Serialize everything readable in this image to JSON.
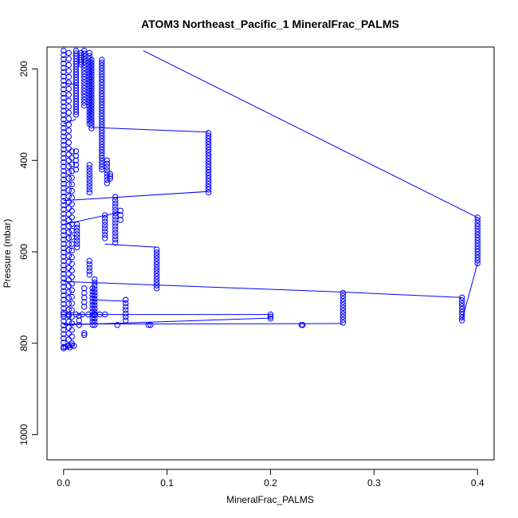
{
  "chart_data": {
    "type": "scatter",
    "title": "ATOM3 Northeast_Pacific_1 MineralFrac_PALMS",
    "xlabel": "MineralFrac_PALMS",
    "ylabel": "Pressure (mbar)",
    "xlim": [
      -0.016,
      0.416
    ],
    "ylim": [
      1055,
      152
    ],
    "y_reversed": true,
    "x_ticks": [
      0.0,
      0.1,
      0.2,
      0.3,
      0.4
    ],
    "x_tick_labels": [
      "0.0",
      "0.1",
      "0.2",
      "0.3",
      "0.4"
    ],
    "y_ticks": [
      200,
      400,
      600,
      800,
      1000
    ],
    "y_tick_labels": [
      "200",
      "400",
      "600",
      "800",
      "1000"
    ],
    "grid": false,
    "colors": {
      "series": "#0000ff",
      "axis": "#000000"
    },
    "series": [
      {
        "marker": "open-circle",
        "connected": true,
        "segments": [
          {
            "x": 0.0,
            "p_start": 160,
            "p_end": 808,
            "n": 70
          },
          {
            "x": 0.005,
            "p_start": 165,
            "p_end": 805,
            "n": 50
          },
          {
            "x": 0.008,
            "p_start": 380,
            "p_end": 800,
            "n": 30
          },
          {
            "x": 0.012,
            "p_start": 160,
            "p_end": 300,
            "n": 25
          },
          {
            "x": 0.012,
            "p_start": 380,
            "p_end": 420,
            "n": 5
          },
          {
            "x": 0.013,
            "p_start": 540,
            "p_end": 590,
            "n": 8
          },
          {
            "x": 0.015,
            "p_start": 740,
            "p_end": 760,
            "n": 3
          },
          {
            "x": 0.017,
            "p_start": 165,
            "p_end": 190,
            "n": 6
          },
          {
            "x": 0.02,
            "p_start": 160,
            "p_end": 280,
            "n": 20
          },
          {
            "x": 0.02,
            "p_start": 680,
            "p_end": 720,
            "n": 5
          },
          {
            "x": 0.025,
            "p_start": 165,
            "p_end": 320,
            "n": 25
          },
          {
            "x": 0.025,
            "p_start": 410,
            "p_end": 470,
            "n": 10
          },
          {
            "x": 0.025,
            "p_start": 620,
            "p_end": 650,
            "n": 5
          },
          {
            "x": 0.027,
            "p_start": 180,
            "p_end": 330,
            "n": 25
          },
          {
            "x": 0.028,
            "p_start": 680,
            "p_end": 760,
            "n": 12
          },
          {
            "x": 0.03,
            "p_start": 660,
            "p_end": 760,
            "n": 15
          },
          {
            "x": 0.037,
            "p_start": 180,
            "p_end": 420,
            "n": 40
          },
          {
            "x": 0.04,
            "p_start": 520,
            "p_end": 570,
            "n": 8
          },
          {
            "x": 0.042,
            "p_start": 400,
            "p_end": 450,
            "n": 8
          },
          {
            "x": 0.045,
            "p_start": 430,
            "p_end": 440,
            "n": 3
          },
          {
            "x": 0.05,
            "p_start": 480,
            "p_end": 580,
            "n": 15
          },
          {
            "x": 0.055,
            "p_start": 510,
            "p_end": 530,
            "n": 3
          },
          {
            "x": 0.06,
            "p_start": 705,
            "p_end": 750,
            "n": 7
          },
          {
            "x": 0.09,
            "p_start": 595,
            "p_end": 680,
            "n": 14
          },
          {
            "x": 0.14,
            "p_start": 340,
            "p_end": 470,
            "n": 22
          },
          {
            "x": 0.2,
            "p_start": 737,
            "p_end": 746,
            "n": 3
          },
          {
            "x": 0.27,
            "p_start": 690,
            "p_end": 755,
            "n": 11
          },
          {
            "x": 0.385,
            "p_start": 700,
            "p_end": 750,
            "n": 9
          },
          {
            "x": 0.4,
            "p_start": 525,
            "p_end": 625,
            "n": 17
          }
        ],
        "points": [
          {
            "x": 0.0,
            "y": 811
          },
          {
            "x": 0.002,
            "y": 808
          },
          {
            "x": 0.004,
            "y": 806
          },
          {
            "x": 0.006,
            "y": 809
          },
          {
            "x": 0.008,
            "y": 804
          },
          {
            "x": 0.01,
            "y": 806
          },
          {
            "x": 0.0,
            "y": 737
          },
          {
            "x": 0.005,
            "y": 737
          },
          {
            "x": 0.012,
            "y": 737
          },
          {
            "x": 0.018,
            "y": 737
          },
          {
            "x": 0.024,
            "y": 737
          },
          {
            "x": 0.03,
            "y": 737
          },
          {
            "x": 0.035,
            "y": 737
          },
          {
            "x": 0.04,
            "y": 737
          },
          {
            "x": 0.052,
            "y": 760
          },
          {
            "x": 0.082,
            "y": 760
          },
          {
            "x": 0.084,
            "y": 760
          },
          {
            "x": 0.23,
            "y": 760
          },
          {
            "x": 0.231,
            "y": 760
          },
          {
            "x": 0.02,
            "y": 782
          },
          {
            "x": 0.02,
            "y": 778
          }
        ],
        "trace": [
          [
            0.0,
            230
          ],
          [
            0.014,
            235
          ],
          [
            0.0,
            320
          ],
          [
            0.012,
            310
          ],
          [
            0.028,
            328
          ],
          [
            0.14,
            338
          ],
          [
            0.14,
            468
          ],
          [
            0.0,
            488
          ],
          [
            0.055,
            513
          ],
          [
            0.0,
            540
          ],
          [
            0.09,
            590
          ],
          [
            0.04,
            583
          ],
          [
            0.0,
            665
          ],
          [
            0.27,
            688
          ],
          [
            0.27,
            688
          ],
          [
            0.385,
            700
          ],
          [
            0.385,
            750
          ],
          [
            0.4,
            625
          ],
          [
            0.4,
            525
          ],
          [
            0.077,
            160
          ],
          [
            0.0,
            737
          ],
          [
            0.2,
            737
          ],
          [
            0.2,
            745
          ],
          [
            0.0,
            760
          ],
          [
            0.0,
            758
          ],
          [
            0.27,
            757
          ],
          [
            0.03,
            705
          ],
          [
            0.06,
            708
          ]
        ]
      }
    ]
  }
}
